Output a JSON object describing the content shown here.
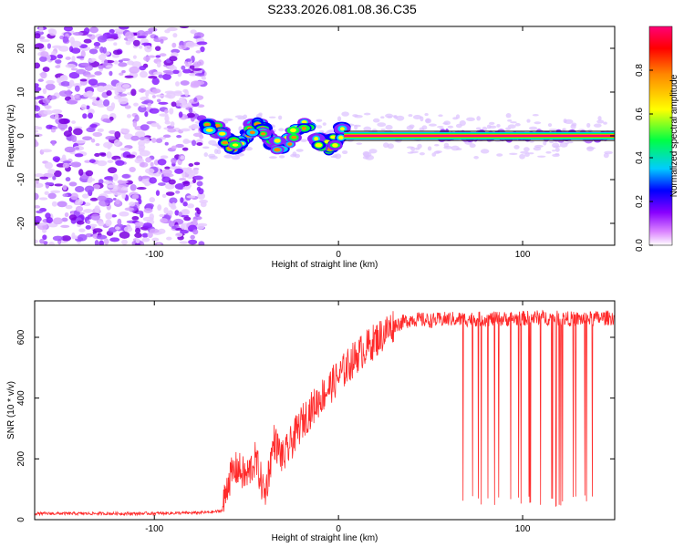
{
  "title": "S233.2026.081.08.36.C35",
  "chart_data": [
    {
      "type": "heatmap",
      "title": "S233.2026.081.08.36.C35",
      "xlabel": "Height of straight line (km)",
      "ylabel": "Frequency (Hz)",
      "xlim": [
        -165,
        150
      ],
      "ylim": [
        -25,
        25
      ],
      "x_ticks": [
        "-100",
        "0",
        "100"
      ],
      "x_tick_values": [
        -100,
        0,
        100
      ],
      "y_ticks": [
        "-20",
        "-10",
        "0",
        "10",
        "20"
      ],
      "y_tick_values": [
        -20,
        -10,
        0,
        10,
        20
      ],
      "grid": false,
      "features": [
        {
          "region": "noise",
          "x_range": [
            -165,
            -73
          ],
          "description_values": {
            "amplitude": 0.1
          }
        },
        {
          "region": "transition",
          "x_range": [
            -73,
            3
          ],
          "amplitude": 0.45
        },
        {
          "region": "carrier",
          "x_range": [
            3,
            150
          ],
          "frequency": 0,
          "amplitude": 0.95
        }
      ],
      "colorbar": {
        "label": "Normalized spectral amplitude",
        "ticks": [
          "0.0",
          "0.2",
          "0.4",
          "0.6",
          "0.8"
        ],
        "tick_values": [
          0.0,
          0.2,
          0.4,
          0.6,
          0.8
        ],
        "range": [
          0,
          1
        ],
        "colors": [
          "#ffffff",
          "#cc00ff",
          "#0000ff",
          "#00ffff",
          "#00ff00",
          "#ffff00",
          "#ff8000",
          "#ff0000",
          "#ff0080"
        ]
      }
    },
    {
      "type": "line",
      "xlabel": "Height of straight line (km)",
      "ylabel": "SNR (10 * v/v)",
      "xlim": [
        -165,
        150
      ],
      "ylim": [
        0,
        720
      ],
      "x_ticks": [
        "-100",
        "0",
        "100"
      ],
      "x_tick_values": [
        -100,
        0,
        100
      ],
      "y_ticks": [
        "0",
        "200",
        "400",
        "600"
      ],
      "y_tick_values": [
        0,
        200,
        400,
        600
      ],
      "grid": false,
      "series": [
        {
          "name": "SNR",
          "color": "#ff2a2a",
          "x": [
            -165,
            -140,
            -110,
            -80,
            -68,
            -63,
            -60,
            -55,
            -50,
            -45,
            -40,
            -35,
            -30,
            -20,
            -10,
            0,
            10,
            20,
            30,
            40,
            50,
            60,
            64,
            70,
            80,
            90,
            100,
            110,
            120,
            130,
            140,
            150
          ],
          "values": [
            20,
            20,
            20,
            22,
            25,
            30,
            130,
            170,
            140,
            200,
            80,
            260,
            200,
            320,
            400,
            470,
            540,
            590,
            640,
            660,
            655,
            660,
            60,
            660,
            50,
            660,
            60,
            665,
            50,
            660,
            60,
            665
          ]
        }
      ]
    }
  ]
}
